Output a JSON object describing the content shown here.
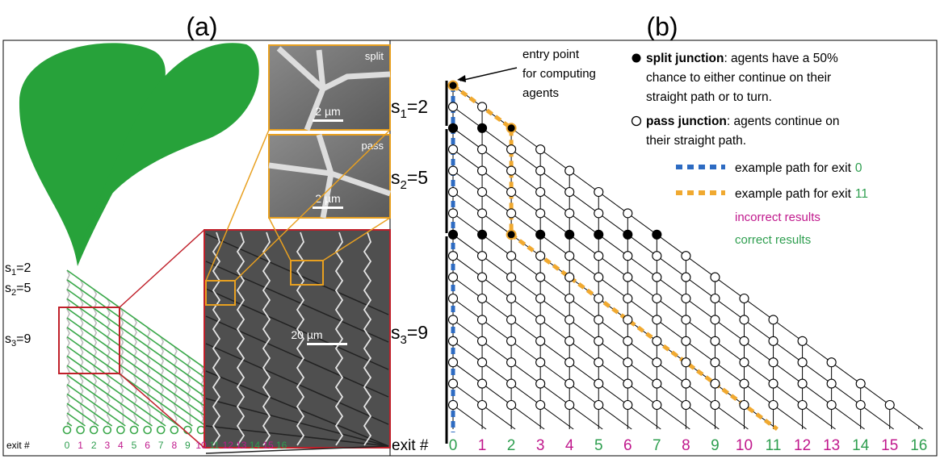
{
  "panel_a": {
    "label": "(a)",
    "micrographs": {
      "split": {
        "label": "split",
        "scale": "2 µm"
      },
      "pass": {
        "label": "pass",
        "scale": "2 µm"
      },
      "overview": {
        "scale": "20 µm"
      }
    },
    "subsets": [
      {
        "name": "s",
        "sub": "1",
        "value": "=2"
      },
      {
        "name": "s",
        "sub": "2",
        "value": "=5"
      },
      {
        "name": "s",
        "sub": "3",
        "value": "=9"
      }
    ],
    "exit_label": "exit #",
    "exits": [
      {
        "label": "0",
        "color": "#2e9e4f"
      },
      {
        "label": "1",
        "color": "#c0188c"
      },
      {
        "label": "2",
        "color": "#2e9e4f"
      },
      {
        "label": "3",
        "color": "#c0188c"
      },
      {
        "label": "4",
        "color": "#c0188c"
      },
      {
        "label": "5",
        "color": "#2e9e4f"
      },
      {
        "label": "6",
        "color": "#c0188c"
      },
      {
        "label": "7",
        "color": "#2e9e4f"
      },
      {
        "label": "8",
        "color": "#c0188c"
      },
      {
        "label": "9",
        "color": "#2e9e4f"
      },
      {
        "label": "10",
        "color": "#c0188c"
      },
      {
        "label": "11",
        "color": "#2e9e4f"
      },
      {
        "label": "12",
        "color": "#c0188c"
      },
      {
        "label": "13",
        "color": "#c0188c"
      },
      {
        "label": "14",
        "color": "#2e9e4f"
      },
      {
        "label": "15",
        "color": "#c0188c"
      },
      {
        "label": "16",
        "color": "#2e9e4f"
      }
    ]
  },
  "panel_b": {
    "label": "(b)",
    "entry_note": [
      "entry point",
      "for computing",
      "agents"
    ],
    "split_junction": {
      "term": "split junction",
      "lines": [
        ": agents have a 50%",
        "chance to either continue on their",
        "straight path or to turn."
      ]
    },
    "pass_junction": {
      "term": "pass junction",
      "lines": [
        ": agents continue on",
        "their straight path."
      ]
    },
    "example_paths": [
      {
        "text": "example path for exit",
        "exit": "0"
      },
      {
        "text": "example path for exit",
        "exit": "11"
      }
    ],
    "incorrect": "incorrect results",
    "correct": "correct results",
    "subsets": [
      {
        "name": "s",
        "sub": "1",
        "value": "=2"
      },
      {
        "name": "s",
        "sub": "2",
        "value": "=5"
      },
      {
        "name": "s",
        "sub": "3",
        "value": "=9"
      }
    ],
    "exit_label": "exit #",
    "exits": [
      {
        "label": "0",
        "color": "#2e9e4f"
      },
      {
        "label": "1",
        "color": "#c0188c"
      },
      {
        "label": "2",
        "color": "#2e9e4f"
      },
      {
        "label": "3",
        "color": "#c0188c"
      },
      {
        "label": "4",
        "color": "#c0188c"
      },
      {
        "label": "5",
        "color": "#2e9e4f"
      },
      {
        "label": "6",
        "color": "#c0188c"
      },
      {
        "label": "7",
        "color": "#2e9e4f"
      },
      {
        "label": "8",
        "color": "#c0188c"
      },
      {
        "label": "9",
        "color": "#2e9e4f"
      },
      {
        "label": "10",
        "color": "#c0188c"
      },
      {
        "label": "11",
        "color": "#2e9e4f"
      },
      {
        "label": "12",
        "color": "#c0188c"
      },
      {
        "label": "13",
        "color": "#c0188c"
      },
      {
        "label": "14",
        "color": "#2e9e4f"
      },
      {
        "label": "15",
        "color": "#c0188c"
      },
      {
        "label": "16",
        "color": "#2e9e4f"
      }
    ]
  }
}
